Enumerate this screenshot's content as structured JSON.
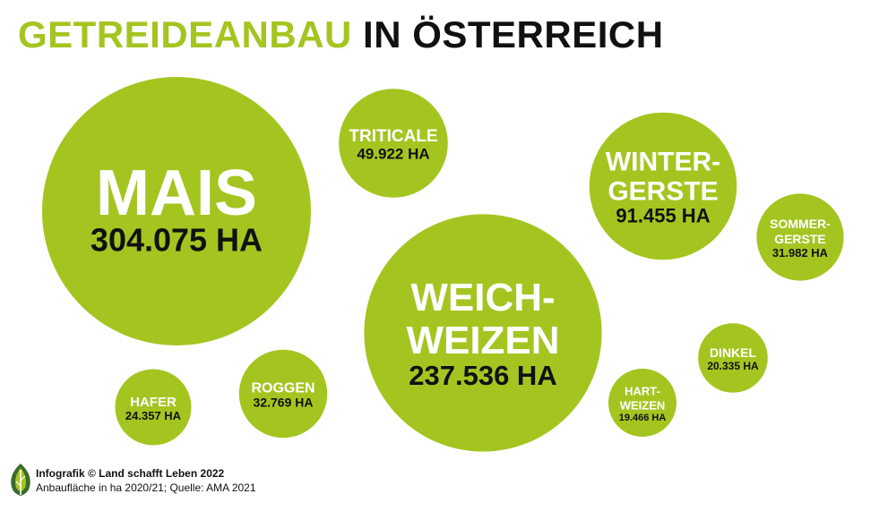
{
  "title": {
    "part1": "GETREIDEANBAU",
    "part2": "IN ÖSTERREICH"
  },
  "colors": {
    "bubble": "#a4c520",
    "title_accent": "#a4c520",
    "text_dark": "#111111",
    "text_light": "#ffffff",
    "logo_dark": "#3a6b2a"
  },
  "footer": {
    "credit": "Infografik © Land schafft Leben 2022",
    "source": "Anbaufläche in ha 2020/21; Quelle: AMA 2021"
  },
  "logo": {
    "icon": "leaf-icon"
  },
  "chart_data": {
    "type": "bubble",
    "unit": "ha",
    "series": [
      {
        "name": "Mais",
        "label_lines": [
          "MAIS"
        ],
        "value": 304075,
        "value_label": "304.075 HA"
      },
      {
        "name": "Weichweizen",
        "label_lines": [
          "WEICH-",
          "WEIZEN"
        ],
        "value": 237536,
        "value_label": "237.536 HA"
      },
      {
        "name": "Wintergerste",
        "label_lines": [
          "WINTER-",
          "GERSTE"
        ],
        "value": 91455,
        "value_label": "91.455 HA"
      },
      {
        "name": "Triticale",
        "label_lines": [
          "TRITICALE"
        ],
        "value": 49922,
        "value_label": "49.922 HA"
      },
      {
        "name": "Roggen",
        "label_lines": [
          "ROGGEN"
        ],
        "value": 32769,
        "value_label": "32.769 HA"
      },
      {
        "name": "Sommergerste",
        "label_lines": [
          "SOMMER-",
          "GERSTE"
        ],
        "value": 31982,
        "value_label": "31.982 HA"
      },
      {
        "name": "Hafer",
        "label_lines": [
          "HAFER"
        ],
        "value": 24357,
        "value_label": "24.357 HA"
      },
      {
        "name": "Dinkel",
        "label_lines": [
          "DINKEL"
        ],
        "value": 20335,
        "value_label": "20.335 HA"
      },
      {
        "name": "Hartweizen",
        "label_lines": [
          "HART-",
          "WEIZEN"
        ],
        "value": 19466,
        "value_label": "19.466 HA"
      }
    ]
  }
}
